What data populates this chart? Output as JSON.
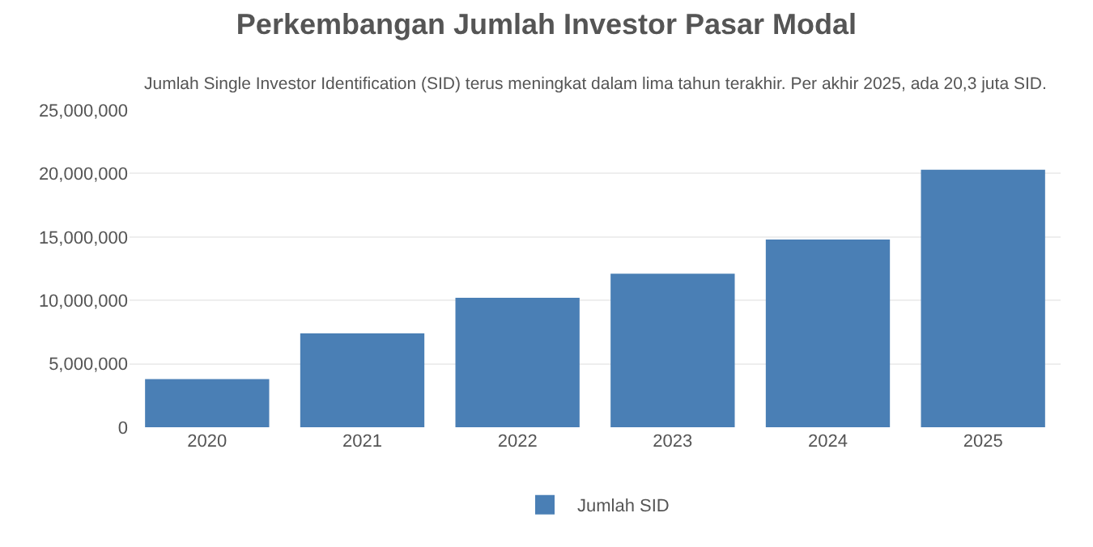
{
  "chart_data": {
    "type": "bar",
    "title": "Perkembangan Jumlah Investor Pasar Modal",
    "subtitle": "Jumlah Single Investor Identification (SID) terus meningkat dalam lima tahun terakhir. Per akhir 2025, ada 20,3 juta SID.",
    "categories": [
      "2020",
      "2021",
      "2022",
      "2023",
      "2024",
      "2025"
    ],
    "series": [
      {
        "name": "Jumlah SID",
        "color": "#4a7fb5",
        "values": [
          3800000,
          7400000,
          10200000,
          12100000,
          14800000,
          20300000
        ]
      }
    ],
    "ylim": [
      0,
      25000000
    ],
    "yticks": [
      {
        "value": 0,
        "label": "0"
      },
      {
        "value": 5000000,
        "label": "5,000,000"
      },
      {
        "value": 10000000,
        "label": "10,000,000"
      },
      {
        "value": 15000000,
        "label": "15,000,000"
      },
      {
        "value": 20000000,
        "label": "20,000,000"
      },
      {
        "value": 25000000,
        "label": "25,000,000"
      }
    ],
    "grid": "y",
    "legend": "bottom"
  }
}
